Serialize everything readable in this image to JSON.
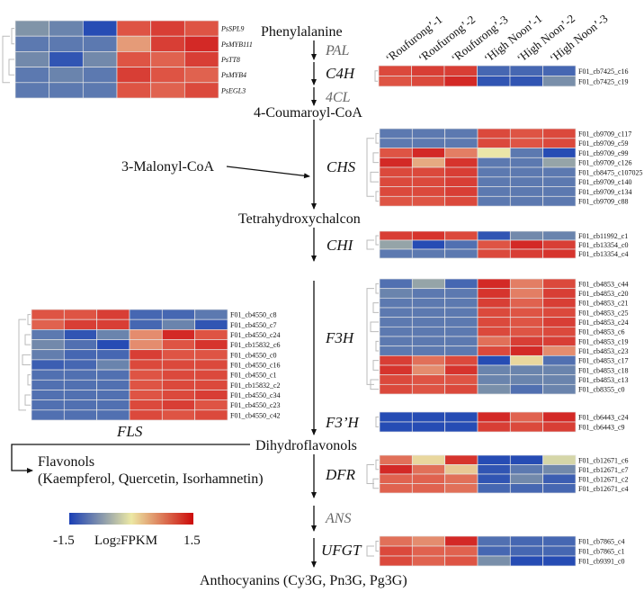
{
  "columns": [
    "‘Roufurong’-1",
    "‘Roufurong’-2",
    "‘Roufurong’-3",
    "‘High Noon’-1",
    "‘High Noon’-2",
    "‘High Noon’-3"
  ],
  "compounds": {
    "phenylalanine": "Phenylalanine",
    "coumaroyl": "4-Coumaroyl-CoA",
    "malonyl": "3-Malonyl-CoA",
    "chalcon": "Tetrahydroxychalcon",
    "dihydroflavonols": "Dihydroflavonols",
    "flavonols_line1": "Flavonols",
    "flavonols_line2": "(Kaempferol, Quercetin, Isorhamnetin)",
    "anthocyanins": "Anthocyanins (Cy3G, Pn3G, Pg3G)"
  },
  "enzymes": {
    "pal": "PAL",
    "c4h": "C4H",
    "4cl": "4CL",
    "chs": "CHS",
    "chi": "CHI",
    "f3h": "F3H",
    "f3ph": "F3’H",
    "fls": "FLS",
    "dfr": "DFR",
    "ans": "ANS",
    "ufgt": "UFGT"
  },
  "legend": {
    "min": "-1.5",
    "max": "1.5",
    "label_prefix": "Log",
    "label_sub": "2",
    "label_suffix": "FPKM",
    "colors": {
      "low": "#1a3fb5",
      "mid": "#ece8a4",
      "high": "#cc0a0a"
    }
  },
  "heatmaps": {
    "tf": {
      "rows": [
        {
          "gene": "PsSPL9",
          "values": [
            -0.5,
            -0.8,
            -1.5,
            1.0,
            1.2,
            1.0
          ]
        },
        {
          "gene": "PsMYB111",
          "values": [
            -1,
            -1,
            -1,
            0.5,
            1.2,
            1.4
          ]
        },
        {
          "gene": "PsTT8",
          "values": [
            -0.7,
            -1.4,
            -0.7,
            1.0,
            0.9,
            1.2
          ]
        },
        {
          "gene": "PsMYB4",
          "values": [
            -1,
            -0.8,
            -1,
            1.2,
            1.0,
            0.9
          ]
        },
        {
          "gene": "PsEGL3",
          "values": [
            -1,
            -1,
            -1,
            1.0,
            0.9,
            1.1
          ]
        }
      ]
    },
    "c4h": {
      "rows": [
        {
          "gene": "F01_cb7425_c16",
          "values": [
            1.1,
            1.2,
            1.2,
            -1.2,
            -1.2,
            -1.2
          ]
        },
        {
          "gene": "F01_cb7425_c19",
          "values": [
            1.0,
            1.1,
            1.4,
            -1.4,
            -1.4,
            -0.6
          ]
        }
      ]
    },
    "chs": {
      "rows": [
        {
          "gene": "F01_cb9709_c117",
          "values": [
            -1,
            -1,
            -1,
            1.1,
            1.0,
            1.1
          ]
        },
        {
          "gene": "F01_cb9709_c59",
          "values": [
            -1,
            -1,
            -1,
            1.1,
            1.0,
            1.1
          ]
        },
        {
          "gene": "F01_cb9709_c99",
          "values": [
            1.0,
            1.4,
            0.7,
            0.0,
            -1.0,
            -1.5
          ]
        },
        {
          "gene": "F01_cb9709_c126",
          "values": [
            1.4,
            0.4,
            1.3,
            -1,
            -1,
            -0.4
          ]
        },
        {
          "gene": "F01_cb8475_c107025",
          "values": [
            1.1,
            1.1,
            1.2,
            -1,
            -1,
            -1
          ]
        },
        {
          "gene": "F01_cb9709_c140",
          "values": [
            1.1,
            1.1,
            1.2,
            -1,
            -1,
            -1
          ]
        },
        {
          "gene": "F01_cb9709_c134",
          "values": [
            1.1,
            1.1,
            1.2,
            -1,
            -1,
            -1
          ]
        },
        {
          "gene": "F01_cb9709_c88",
          "values": [
            1.0,
            1.0,
            1.1,
            -1,
            -1,
            -1
          ]
        }
      ]
    },
    "chi": {
      "rows": [
        {
          "gene": "F01_cb11992_c1",
          "values": [
            1.2,
            1.3,
            1.1,
            -1.4,
            -0.7,
            -0.8
          ]
        },
        {
          "gene": "F01_cb13354_c0",
          "values": [
            -0.4,
            -1.5,
            -1.1,
            1.0,
            1.4,
            1.2
          ]
        },
        {
          "gene": "F01_cb13354_c4",
          "values": [
            -1,
            -1,
            -1,
            1.1,
            1.2,
            1.3
          ]
        }
      ]
    },
    "f3h": {
      "rows": [
        {
          "gene": "F01_cb4853_c44",
          "values": [
            -1.1,
            -0.4,
            -1.2,
            1.4,
            0.7,
            1.1
          ]
        },
        {
          "gene": "F01_cb4853_c20",
          "values": [
            -0.8,
            -1,
            -1,
            1.3,
            0.7,
            1.2
          ]
        },
        {
          "gene": "F01_cb4853_c21",
          "values": [
            -1,
            -1,
            -1,
            1.2,
            0.9,
            1.2
          ]
        },
        {
          "gene": "F01_cb4853_c25",
          "values": [
            -1,
            -1,
            -1,
            1.1,
            1.0,
            1.1
          ]
        },
        {
          "gene": "F01_cb4853_c24",
          "values": [
            -1,
            -1,
            -1,
            1.1,
            1.0,
            1.2
          ]
        },
        {
          "gene": "F01_cb4853_c6",
          "values": [
            -1,
            -1,
            -1,
            1.1,
            1.0,
            1.1
          ]
        },
        {
          "gene": "F01_cb4853_c19",
          "values": [
            -1,
            -1,
            -1,
            0.8,
            1.2,
            1.2
          ]
        },
        {
          "gene": "F01_cb4853_c23",
          "values": [
            -1,
            -1,
            -1,
            1.1,
            1.4,
            0.6
          ]
        },
        {
          "gene": "F01_cb4853_c17",
          "values": [
            1.2,
            0.8,
            1.1,
            -1.5,
            0.1,
            -1.1
          ]
        },
        {
          "gene": "F01_cb4853_c18",
          "values": [
            1.3,
            0.6,
            1.3,
            -0.8,
            -0.8,
            -0.8
          ]
        },
        {
          "gene": "F01_cb4853_c13",
          "values": [
            1.1,
            1.0,
            1.0,
            -0.8,
            -0.8,
            -0.8
          ]
        },
        {
          "gene": "F01_cb8355_c0",
          "values": [
            1.1,
            1.0,
            1.1,
            -0.6,
            -1.1,
            -0.8
          ]
        }
      ]
    },
    "fls": {
      "rows": [
        {
          "gene": "F01_cb4550_c8",
          "values": [
            1.0,
            1.0,
            1.2,
            -1.2,
            -1.2,
            -1.0
          ]
        },
        {
          "gene": "F01_cb4550_c7",
          "values": [
            0.9,
            1.2,
            1.2,
            -1.2,
            -0.8,
            -1.4
          ]
        },
        {
          "gene": "F01_cb4550_c24",
          "values": [
            -1.0,
            -1.4,
            -0.8,
            0.6,
            1.4,
            1.0
          ]
        },
        {
          "gene": "F01_cb15832_c6",
          "values": [
            -0.7,
            -1.1,
            -1.5,
            0.6,
            1.0,
            1.3
          ]
        },
        {
          "gene": "F01_cb4550_c0",
          "values": [
            -0.9,
            -1.2,
            -1.2,
            1.2,
            1.0,
            1.0
          ]
        },
        {
          "gene": "F01_cb4550_c16",
          "values": [
            -1.3,
            -1.2,
            -0.8,
            1.1,
            1.1,
            1.1
          ]
        },
        {
          "gene": "F01_cb4550_c1",
          "values": [
            -1.1,
            -1.1,
            -1.1,
            1.0,
            1.1,
            1.1
          ]
        },
        {
          "gene": "F01_cb15832_c2",
          "values": [
            -1.1,
            -1.1,
            -1.1,
            1.0,
            1.1,
            1.1
          ]
        },
        {
          "gene": "F01_cb4550_c34",
          "values": [
            -1.1,
            -1.1,
            -1.1,
            1.0,
            1.1,
            1.2
          ]
        },
        {
          "gene": "F01_cb4550_c23",
          "values": [
            -1.1,
            -1.1,
            -1.1,
            1.1,
            1.2,
            1.0
          ]
        },
        {
          "gene": "F01_cb4550_c42",
          "values": [
            -1.1,
            -1.1,
            -1.1,
            1.1,
            1.0,
            1.1
          ]
        }
      ]
    },
    "f3ph": {
      "rows": [
        {
          "gene": "F01_cb6443_c24",
          "values": [
            -1.5,
            -1.5,
            -1.5,
            1.4,
            0.9,
            1.4
          ]
        },
        {
          "gene": "F01_cb6443_c9",
          "values": [
            -1.5,
            -1.5,
            -1.5,
            1.2,
            1.1,
            1.2
          ]
        }
      ]
    },
    "dfr": {
      "rows": [
        {
          "gene": "F01_cb12671_c6",
          "values": [
            0.8,
            0.1,
            1.3,
            -1.5,
            -1.5,
            -0.1
          ]
        },
        {
          "gene": "F01_cb12671_c7",
          "values": [
            1.4,
            0.8,
            0.2,
            -1.4,
            -1.0,
            -0.7
          ]
        },
        {
          "gene": "F01_cb12671_c2",
          "values": [
            0.9,
            0.9,
            0.8,
            -1.4,
            -0.7,
            -1.3
          ]
        },
        {
          "gene": "F01_cb12671_c4",
          "values": [
            0.9,
            0.9,
            0.8,
            -1.2,
            -1.2,
            -1.2
          ]
        }
      ]
    },
    "ufgt": {
      "rows": [
        {
          "gene": "F01_cb7865_c4",
          "values": [
            0.8,
            0.6,
            1.4,
            -1.1,
            -1.2,
            -1.2
          ]
        },
        {
          "gene": "F01_cb7865_c1",
          "values": [
            1.1,
            0.9,
            0.9,
            -1.2,
            -1.2,
            -1.2
          ]
        },
        {
          "gene": "F01_cb9391_c0",
          "values": [
            1.1,
            0.9,
            1.0,
            -0.6,
            -1.5,
            -1.5
          ]
        }
      ]
    }
  }
}
